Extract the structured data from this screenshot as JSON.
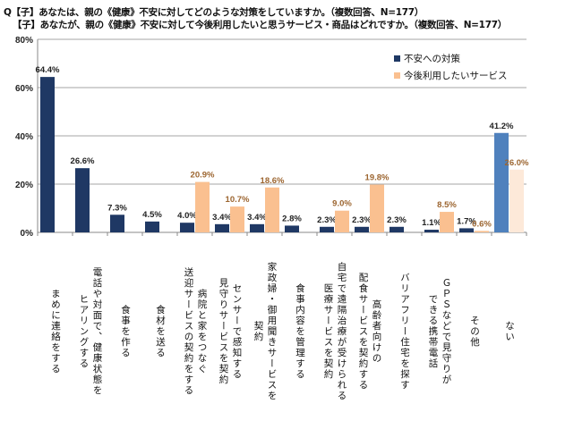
{
  "titles": [
    "Q【子】あなたは、親の《健康》不安に対してどのような対策をしていますか。（複数回答、N=177）",
    "【子】あなたが、親の《健康》不安に対して今後利用したいと思うサービス・商品はどれですか。（複数回答、N=177）"
  ],
  "chart_data": {
    "type": "bar",
    "title": "",
    "xlabel": "",
    "ylabel": "",
    "ylim": [
      0,
      80
    ],
    "yticks": [
      "0%",
      "20%",
      "40%",
      "60%",
      "80%"
    ],
    "grid": true,
    "legend_position": "top-right",
    "categories": [
      "まめに連絡をする",
      "電話や対面で、健康状態を\nヒアリングする",
      "食事を作る",
      "食材を送る",
      "病院と家をつなぐ\n送迎サービスの契約をする",
      "センサーで感知する\n見守りサービスを契約",
      "家政婦・御用聞きサービスを\n契約",
      "食事内容を管理する",
      "自宅で遠隔治療が受けられる\n医療サービスを契約",
      "高齢者向けの\n配食サービスを契約する",
      "バリアフリー住宅を探す",
      "ＧＰＳなどで見守りが\nできる携帯電話",
      "その他",
      "ない"
    ],
    "series": [
      {
        "name": "不安への対策",
        "color": "#1f3864",
        "highlight_color": "#4f81bd",
        "label_color": "#222222",
        "values": [
          64.4,
          26.6,
          7.3,
          4.5,
          4.0,
          3.4,
          3.4,
          2.8,
          2.3,
          2.3,
          2.3,
          1.1,
          1.7,
          41.2
        ],
        "labels": [
          "64.4%",
          "26.6%",
          "7.3%",
          "4.5%",
          "4.0%",
          "3.4%",
          "3.4%",
          "2.8%",
          "2.3%",
          "2.3%",
          "2.3%",
          "1.1%",
          "1.7%",
          "41.2%"
        ]
      },
      {
        "name": "今後利用したいサービス",
        "color": "#fac090",
        "highlight_color": "#fde9d9",
        "label_color": "#9c6530",
        "values": [
          null,
          null,
          null,
          null,
          20.9,
          10.7,
          18.6,
          null,
          9.0,
          19.8,
          null,
          8.5,
          0.6,
          26.0
        ],
        "labels": [
          null,
          null,
          null,
          null,
          "20.9%",
          "10.7%",
          "18.6%",
          null,
          "9.0%",
          "19.8%",
          null,
          "8.5%",
          "0.6%",
          "26.0%"
        ]
      }
    ]
  }
}
